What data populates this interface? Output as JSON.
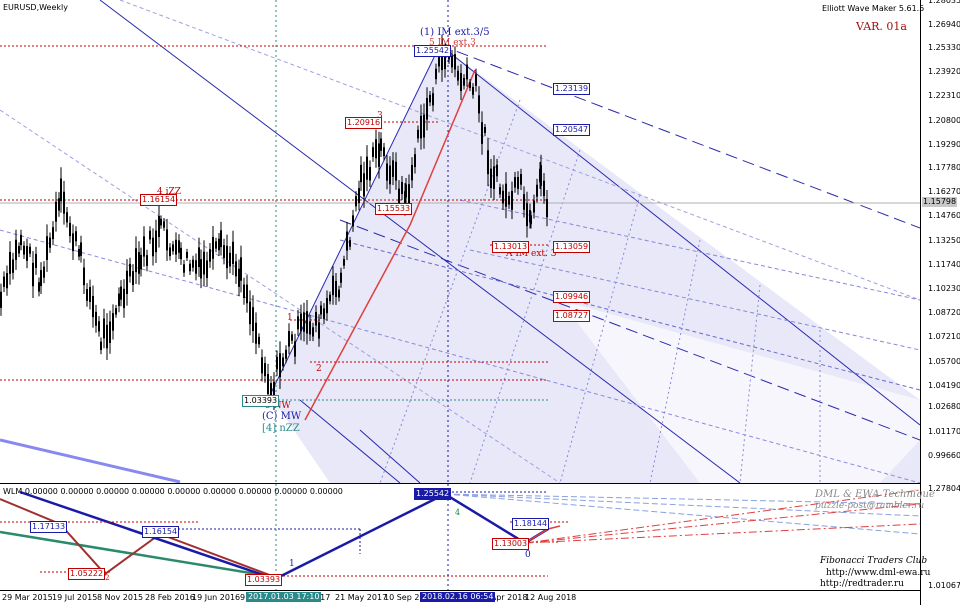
{
  "chart_title": "EURUSD,Weekly",
  "indicator_name": "Elliott Wave Maker 5.61.5",
  "variant": "VAR. 01a",
  "price_axis": {
    "labels": [
      "1.28035",
      "1.26940",
      "1.25330",
      "1.23920",
      "1.22310",
      "1.20800",
      "1.19290",
      "1.17780",
      "1.16270",
      "1.14760",
      "1.13250",
      "1.11740",
      "1.10230",
      "1.08720",
      "1.07210",
      "1.05700",
      "1.04190",
      "1.02680",
      "1.01170",
      "0.99660"
    ],
    "current_price": "1.15798"
  },
  "sub_axis": {
    "labels": [
      "1.27804",
      "1.01067"
    ]
  },
  "time_axis": {
    "labels": [
      "29 Mar 2015",
      "19 Jul 2015",
      "8 Nov 2015",
      "28 Feb 2016",
      "19 Jun 2016",
      "9",
      "2017",
      "21 May 2017",
      "10 Sep 2017",
      "22 Apr 2018",
      "12 Aug 2018"
    ],
    "flags": [
      "2017.01.03 17:10",
      "2018.02.16 06:54"
    ]
  },
  "level_boxes": {
    "b_125": "1.25542",
    "b_1231": "1.23139",
    "b_1205": "1.20547",
    "b_1209": "1.20916",
    "b_1161": "1.16154",
    "b_1155": "1.15533",
    "b_1130a": "1.13013",
    "b_1130b": "1.13059",
    "b_1099": "1.09946",
    "b_1087": "1.08727",
    "b_1033": "1.03393"
  },
  "wave_labels": {
    "top": "(1) IM ext.3/5",
    "top2": "5 IM ext.3",
    "aimext": "A IM ext. 3",
    "izz": "4 iZZ",
    "mw": "(C) MW",
    "nzz": "[4] nZZ",
    "nw": "5 NW",
    "w1": "1",
    "w2": "2",
    "w3": "3",
    "w4": "4"
  },
  "sub_window": {
    "title": "WLM 0.00000 0.00000 0.00000 0.00000 0.00000 0.00000 0.00000 0.00000 0.00000",
    "boxes": {
      "s1": "1.17133",
      "s2": "1.16154",
      "s3": "1.05222",
      "s4": "1.03393",
      "s5": "1.25542",
      "s6": "1.18144",
      "s7": "1.13003"
    },
    "labels": {
      "l1": "1",
      "l0": "0",
      "l4": "4",
      "l2": "2"
    }
  },
  "credits": {
    "line1": "DML & EWA Technique",
    "line2": "puzzle-post@rambler.ru",
    "line3": "Fibonacci   Traders   Club",
    "line4": "http://www.dml-ewa.ru",
    "line5": "http://redtrader.ru"
  },
  "colors": {
    "red": "#c00000",
    "navy": "#1a1aa8",
    "channel_fill": "#e6e6f7",
    "candle": "#000000"
  }
}
